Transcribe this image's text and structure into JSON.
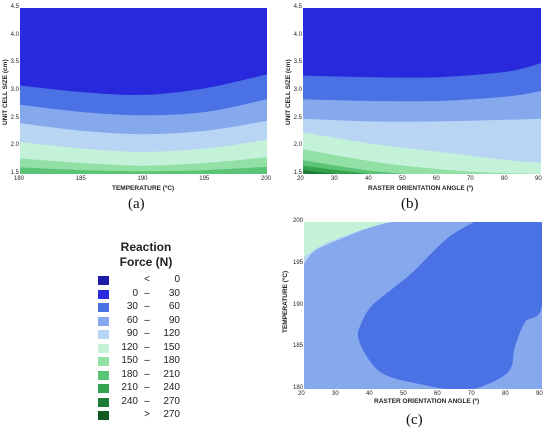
{
  "legend": {
    "title_line1": "Reaction",
    "title_line2": "Force (N)",
    "items": [
      {
        "lo": "",
        "op": "<",
        "hi": "0",
        "color": "#1c1aa8"
      },
      {
        "lo": "0",
        "op": "–",
        "hi": "30",
        "color": "#2828dc"
      },
      {
        "lo": "30",
        "op": "–",
        "hi": "60",
        "color": "#4a72e4"
      },
      {
        "lo": "60",
        "op": "–",
        "hi": "90",
        "color": "#86a9ee"
      },
      {
        "lo": "90",
        "op": "–",
        "hi": "120",
        "color": "#b8d6f4"
      },
      {
        "lo": "120",
        "op": "–",
        "hi": "150",
        "color": "#c4f2d8"
      },
      {
        "lo": "150",
        "op": "–",
        "hi": "180",
        "color": "#92e0a6"
      },
      {
        "lo": "180",
        "op": "–",
        "hi": "210",
        "color": "#5cc476"
      },
      {
        "lo": "210",
        "op": "–",
        "hi": "240",
        "color": "#32a24e"
      },
      {
        "lo": "240",
        "op": "–",
        "hi": "270",
        "color": "#1e7c34"
      },
      {
        "lo": "",
        "op": ">",
        "hi": "270",
        "color": "#125a22"
      }
    ]
  },
  "chart_data": [
    {
      "type": "heatmap",
      "caption": "(a)",
      "xlabel": "TEMPERATURE (ºC)",
      "ylabel": "UNIT CELL SIZE (cm)",
      "xlim": [
        180,
        200
      ],
      "ylim": [
        1.5,
        4.5
      ],
      "xticks": [
        "180",
        "185",
        "190",
        "195",
        "200"
      ],
      "yticks": [
        "1.5",
        "2.0",
        "2.5",
        "3.0",
        "3.5",
        "4.0",
        "4.5"
      ],
      "bands": [
        {
          "range": "0 – 30",
          "color": "#2828dc"
        },
        {
          "range": "30 – 60",
          "color": "#4a72e4"
        },
        {
          "range": "60 – 90",
          "color": "#86a9ee"
        },
        {
          "range": "90 – 120",
          "color": "#b8d6f4"
        },
        {
          "range": "120 – 150",
          "color": "#c4f2d8"
        },
        {
          "range": "150 – 180",
          "color": "#92e0a6"
        },
        {
          "range": "180 – 210",
          "color": "#5cc476"
        }
      ],
      "contours": [
        {
          "level": 30,
          "x": [
            180,
            185,
            190,
            195,
            200
          ],
          "y": [
            3.1,
            2.98,
            2.93,
            3.05,
            3.3
          ]
        },
        {
          "level": 60,
          "x": [
            180,
            185,
            190,
            195,
            200
          ],
          "y": [
            2.75,
            2.62,
            2.56,
            2.62,
            2.85
          ]
        },
        {
          "level": 90,
          "x": [
            180,
            185,
            190,
            195,
            200
          ],
          "y": [
            2.42,
            2.28,
            2.22,
            2.28,
            2.46
          ]
        },
        {
          "level": 120,
          "x": [
            180,
            185,
            190,
            195,
            200
          ],
          "y": [
            2.08,
            1.96,
            1.9,
            1.96,
            2.12
          ]
        },
        {
          "level": 150,
          "x": [
            180,
            185,
            190,
            195,
            200
          ],
          "y": [
            1.78,
            1.7,
            1.65,
            1.7,
            1.8
          ]
        },
        {
          "level": 180,
          "x": [
            180,
            185,
            190,
            195,
            200
          ],
          "y": [
            1.62,
            1.57,
            1.55,
            1.57,
            1.63
          ]
        }
      ]
    },
    {
      "type": "heatmap",
      "caption": "(b)",
      "xlabel": "RASTER ORIENTATION ANGLE (º)",
      "ylabel": "UNIT CELL SIZE (cm)",
      "xlim": [
        20,
        90
      ],
      "ylim": [
        1.5,
        4.5
      ],
      "xticks": [
        "20",
        "30",
        "40",
        "50",
        "60",
        "70",
        "80",
        "90"
      ],
      "yticks": [
        "1.5",
        "2.0",
        "2.5",
        "3.0",
        "3.5",
        "4.0",
        "4.5"
      ],
      "bands": [
        {
          "range": "0 – 30",
          "color": "#2828dc"
        },
        {
          "range": "30 – 60",
          "color": "#4a72e4"
        },
        {
          "range": "60 – 90",
          "color": "#86a9ee"
        },
        {
          "range": "90 – 120",
          "color": "#b8d6f4"
        },
        {
          "range": "120 – 150",
          "color": "#c4f2d8"
        },
        {
          "range": "150 – 180",
          "color": "#92e0a6"
        },
        {
          "range": "180 – 210",
          "color": "#5cc476"
        },
        {
          "range": "210 – 240",
          "color": "#32a24e"
        },
        {
          "range": "240 – 270",
          "color": "#1e7c34"
        }
      ],
      "contours": [
        {
          "level": 30,
          "x": [
            20,
            40,
            60,
            80,
            90
          ],
          "y": [
            3.28,
            3.25,
            3.25,
            3.35,
            3.5
          ]
        },
        {
          "level": 60,
          "x": [
            20,
            40,
            60,
            80,
            90
          ],
          "y": [
            2.85,
            2.82,
            2.82,
            2.9,
            3.0
          ]
        },
        {
          "level": 90,
          "x": [
            20,
            40,
            60,
            80,
            90
          ],
          "y": [
            2.5,
            2.45,
            2.45,
            2.48,
            2.5
          ]
        },
        {
          "level": 120,
          "x": [
            20,
            40,
            60,
            80,
            90
          ],
          "y": [
            2.25,
            2.05,
            1.9,
            1.75,
            1.7
          ]
        },
        {
          "level": 150,
          "x": [
            20,
            35,
            50,
            70,
            90
          ],
          "y": [
            1.95,
            1.78,
            1.65,
            1.54,
            1.5
          ]
        },
        {
          "level": 180,
          "x": [
            20,
            30,
            40,
            50
          ],
          "y": [
            1.75,
            1.65,
            1.56,
            1.5
          ]
        },
        {
          "level": 210,
          "x": [
            20,
            30,
            40
          ],
          "y": [
            1.65,
            1.57,
            1.5
          ]
        },
        {
          "level": 240,
          "x": [
            20,
            25,
            30
          ],
          "y": [
            1.57,
            1.53,
            1.5
          ]
        }
      ]
    },
    {
      "type": "heatmap",
      "caption": "(c)",
      "xlabel": "RASTER ORIENTATION ANGLE (º)",
      "ylabel": "TEMPERATURE (ºC)",
      "xlim": [
        20,
        90
      ],
      "ylim": [
        180,
        200
      ],
      "xticks": [
        "20",
        "30",
        "40",
        "50",
        "60",
        "70",
        "80",
        "90"
      ],
      "yticks": [
        "180",
        "185",
        "190",
        "195",
        "200"
      ],
      "bands": [
        {
          "range": "30 – 60",
          "color": "#4a72e4"
        },
        {
          "range": "60 – 90",
          "color": "#86a9ee"
        },
        {
          "range": "90 – 120",
          "color": "#b8d6f4"
        },
        {
          "range": "120 – 150",
          "color": "#c4f2d8"
        }
      ],
      "regions": [
        {
          "level": "30 – 60",
          "x": [
            74,
            90,
            90,
            85,
            82,
            80,
            70,
            62,
            55,
            45,
            40,
            36,
            37,
            40,
            46,
            52,
            62,
            70
          ],
          "y": [
            200,
            200,
            190,
            188,
            185,
            182,
            180,
            180,
            180.5,
            181.5,
            183,
            186,
            188,
            190,
            192,
            194,
            198,
            200
          ]
        },
        {
          "level": "90 – 120",
          "x": [
            20,
            20,
            25,
            31
          ],
          "y": [
            199,
            200,
            200,
            200
          ]
        },
        {
          "level": "120 – 150",
          "x": [
            20,
            20,
            22,
            30,
            40,
            46
          ],
          "y": [
            195.5,
            200,
            200,
            200,
            200,
            200
          ]
        },
        {
          "level": "90 – 120 (edge)",
          "x": [
            20,
            23,
            28,
            34,
            40,
            46
          ],
          "y": [
            195,
            196.5,
            197.5,
            198.5,
            199.5,
            200
          ]
        }
      ]
    }
  ]
}
